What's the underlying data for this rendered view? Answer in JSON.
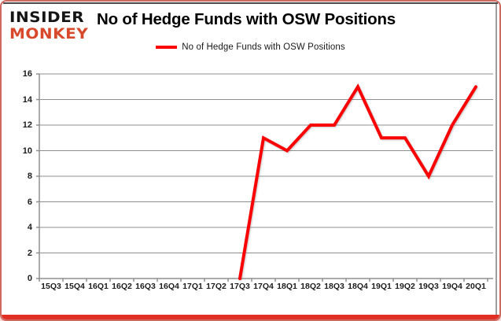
{
  "logo": {
    "line1": "INSIDER",
    "line2": "MONKEY"
  },
  "header": {
    "title": "No of Hedge Funds with OSW Positions"
  },
  "legend": {
    "label": "No of Hedge Funds with OSW Positions"
  },
  "colors": {
    "line": "#fb0000",
    "brand_red": "#d8492b",
    "accent_bottom_bar": "#e22f26",
    "grid": "#8f8f8f",
    "axis": "#8f8f8f",
    "text": "#1c1c1c"
  },
  "chart_data": {
    "type": "line",
    "title": "No of Hedge Funds with OSW Positions",
    "categories": [
      "15Q3",
      "15Q4",
      "16Q1",
      "16Q2",
      "16Q3",
      "16Q4",
      "17Q1",
      "17Q2",
      "17Q3",
      "17Q4",
      "18Q1",
      "18Q2",
      "18Q3",
      "18Q4",
      "19Q1",
      "19Q2",
      "19Q3",
      "19Q4",
      "20Q1"
    ],
    "series": [
      {
        "name": "No of Hedge Funds with OSW Positions",
        "color": "#fb0000",
        "values": [
          null,
          null,
          null,
          null,
          null,
          null,
          null,
          null,
          0,
          11,
          10,
          12,
          12,
          15,
          11,
          11,
          8,
          12,
          15
        ]
      }
    ],
    "xlabel": "",
    "ylabel": "",
    "ylim": [
      0,
      16
    ],
    "ytick_step": 2,
    "grid": true,
    "legend_position": "top-center"
  }
}
